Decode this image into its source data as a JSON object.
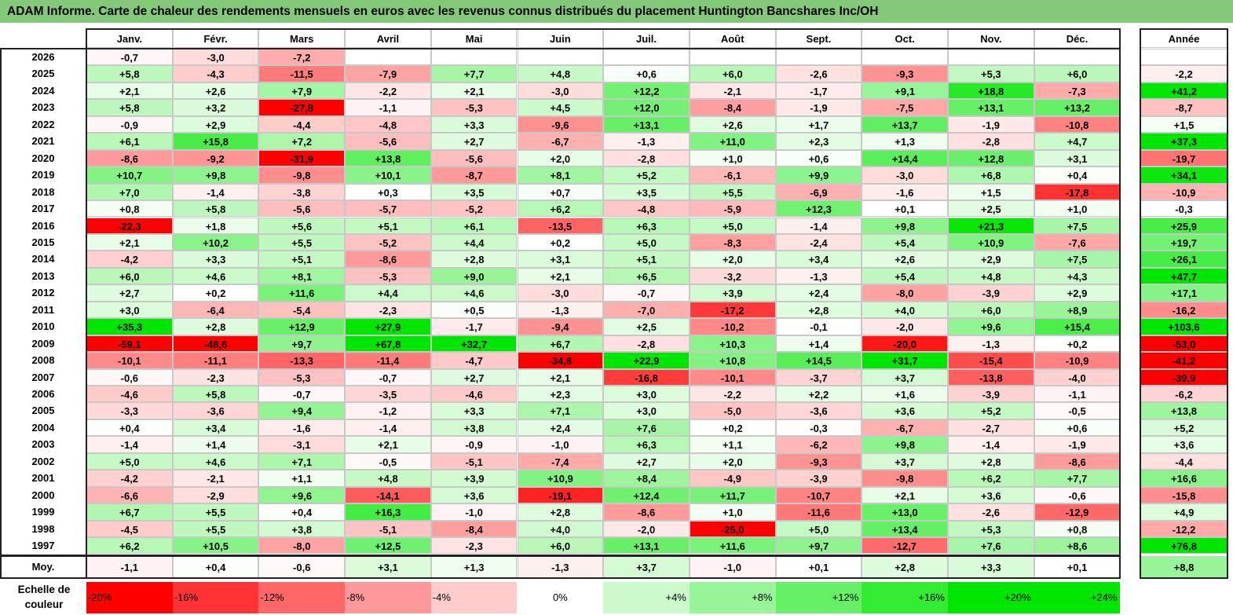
{
  "title": "ADAM Informe. Carte de chaleur des rendements mensuels en euros avec les revenus connus distribués du placement Huntington Bancshares Inc/OH",
  "chart_data": {
    "type": "heatmap",
    "title": "ADAM Informe. Carte de chaleur des rendements mensuels en euros avec les revenus connus distribués du placement Huntington Bancshares Inc/OH",
    "columns": [
      "Janv.",
      "Févr.",
      "Mars",
      "Avril",
      "Mai",
      "Juin",
      "Juil.",
      "Août",
      "Sept.",
      "Oct.",
      "Nov.",
      "Déc."
    ],
    "year_header": "Année",
    "rows": [
      {
        "year": "2026",
        "months": [
          "-0,7",
          "-3,0",
          "-7,2",
          "",
          "",
          "",
          "",
          "",
          "",
          "",
          "",
          ""
        ],
        "annual": ""
      },
      {
        "year": "2025",
        "months": [
          "+5,8",
          "-4,3",
          "-11,5",
          "-7,9",
          "+7,7",
          "+4,8",
          "+0,6",
          "+6,0",
          "-2,6",
          "-9,3",
          "+5,3",
          "+6,0"
        ],
        "annual": "-2,2"
      },
      {
        "year": "2024",
        "months": [
          "+2,1",
          "+2,6",
          "+7,9",
          "-2,2",
          "+2,1",
          "-3,0",
          "+12,2",
          "-2,1",
          "-1,7",
          "+9,1",
          "+18,8",
          "-7,3"
        ],
        "annual": "+41,2"
      },
      {
        "year": "2023",
        "months": [
          "+5,8",
          "+3,2",
          "-27,8",
          "-1,1",
          "-5,3",
          "+4,5",
          "+12,0",
          "-8,4",
          "-1,9",
          "-7,5",
          "+13,1",
          "+13,2"
        ],
        "annual": "-8,7"
      },
      {
        "year": "2022",
        "months": [
          "-0,9",
          "+2,9",
          "-4,4",
          "-4,8",
          "+3,3",
          "-9,6",
          "+13,1",
          "+2,6",
          "+1,7",
          "+13,7",
          "-1,9",
          "-10,8"
        ],
        "annual": "+1,5"
      },
      {
        "year": "2021",
        "months": [
          "+6,1",
          "+15,8",
          "+7,2",
          "-5,6",
          "+2,7",
          "-6,7",
          "-1,3",
          "+11,0",
          "+2,3",
          "+1,3",
          "-2,8",
          "+4,7"
        ],
        "annual": "+37,3"
      },
      {
        "year": "2020",
        "months": [
          "-8,6",
          "-9,2",
          "-31,9",
          "+13,8",
          "-5,6",
          "+2,0",
          "-2,8",
          "+1,0",
          "+0,6",
          "+14,4",
          "+12,8",
          "+3,1"
        ],
        "annual": "-19,7"
      },
      {
        "year": "2019",
        "months": [
          "+10,7",
          "+9,8",
          "-9,8",
          "+10,1",
          "-8,7",
          "+8,1",
          "+5,2",
          "-6,1",
          "+9,9",
          "-3,0",
          "+6,8",
          "+0,4"
        ],
        "annual": "+34,1"
      },
      {
        "year": "2018",
        "months": [
          "+7,0",
          "-1,4",
          "-3,8",
          "+0,3",
          "+3,5",
          "+0,7",
          "+3,5",
          "+5,5",
          "-6,9",
          "-1,6",
          "+1,5",
          "-17,8"
        ],
        "annual": "-10,9"
      },
      {
        "year": "2017",
        "months": [
          "+0,8",
          "+5,8",
          "-5,6",
          "-5,7",
          "-5,2",
          "+6,2",
          "-4,8",
          "-5,9",
          "+12,3",
          "+0,1",
          "+2,5",
          "+1,0"
        ],
        "annual": "-0,3"
      },
      {
        "year": "2016",
        "months": [
          "-22,3",
          "+1,8",
          "+5,6",
          "+5,1",
          "+6,1",
          "-13,5",
          "+6,3",
          "+5,0",
          "-1,4",
          "+9,8",
          "+21,3",
          "+7,5"
        ],
        "annual": "+25,9"
      },
      {
        "year": "2015",
        "months": [
          "+2,1",
          "+10,2",
          "+5,5",
          "-5,2",
          "+4,4",
          "+0,2",
          "+5,0",
          "-8,3",
          "-2,4",
          "+5,4",
          "+10,9",
          "-7,6"
        ],
        "annual": "+19,7"
      },
      {
        "year": "2014",
        "months": [
          "-4,2",
          "+3,3",
          "+5,1",
          "-8,6",
          "+2,8",
          "+3,1",
          "+5,1",
          "+2,0",
          "+3,4",
          "+2,6",
          "+2,9",
          "+7,5"
        ],
        "annual": "+26,1"
      },
      {
        "year": "2013",
        "months": [
          "+6,0",
          "+4,6",
          "+8,1",
          "-5,3",
          "+9,0",
          "+2,1",
          "+6,5",
          "-3,2",
          "-1,3",
          "+5,4",
          "+4,8",
          "+4,3"
        ],
        "annual": "+47,7"
      },
      {
        "year": "2012",
        "months": [
          "+2,7",
          "+0,2",
          "+11,6",
          "+4,4",
          "+4,6",
          "-3,0",
          "-0,7",
          "+3,9",
          "+2,4",
          "-8,0",
          "-3,9",
          "+2,9"
        ],
        "annual": "+17,1"
      },
      {
        "year": "2011",
        "months": [
          "+3,0",
          "-6,4",
          "-5,4",
          "-2,3",
          "+0,5",
          "-1,3",
          "-7,0",
          "-17,2",
          "+2,8",
          "+4,0",
          "+6,0",
          "+8,9"
        ],
        "annual": "-16,2"
      },
      {
        "year": "2010",
        "months": [
          "+35,3",
          "+2,8",
          "+12,9",
          "+27,9",
          "-1,7",
          "-9,4",
          "+2,5",
          "-10,2",
          "-0,1",
          "-2,0",
          "+9,6",
          "+15,4"
        ],
        "annual": "+103,6"
      },
      {
        "year": "2009",
        "months": [
          "-59,1",
          "-48,6",
          "+9,7",
          "+67,8",
          "+32,7",
          "+6,7",
          "-2,8",
          "+10,3",
          "+1,4",
          "-20,0",
          "-1,3",
          "+0,2"
        ],
        "annual": "-53,0"
      },
      {
        "year": "2008",
        "months": [
          "-10,1",
          "-11,1",
          "-13,3",
          "-11,4",
          "-4,7",
          "-34,8",
          "+22,9",
          "+10,8",
          "+14,5",
          "+31,7",
          "-15,4",
          "-10,9"
        ],
        "annual": "-41,2"
      },
      {
        "year": "2007",
        "months": [
          "-0,6",
          "-2,3",
          "-5,3",
          "-0,7",
          "+2,7",
          "+2,1",
          "-16,8",
          "-10,1",
          "-3,7",
          "+3,7",
          "-13,8",
          "-4,0"
        ],
        "annual": "-39,9"
      },
      {
        "year": "2006",
        "months": [
          "-4,6",
          "+5,8",
          "-0,7",
          "-3,5",
          "-4,6",
          "+2,3",
          "+3,0",
          "-2,2",
          "+2,2",
          "+1,6",
          "-3,9",
          "-1,1"
        ],
        "annual": "-6,2"
      },
      {
        "year": "2005",
        "months": [
          "-3,3",
          "-3,6",
          "+9,4",
          "-1,2",
          "+3,3",
          "+7,1",
          "+3,0",
          "-5,0",
          "-3,6",
          "+3,6",
          "+5,2",
          "-0,5"
        ],
        "annual": "+13,8"
      },
      {
        "year": "2004",
        "months": [
          "+0,4",
          "+3,4",
          "-1,6",
          "-1,4",
          "+3,8",
          "+2,4",
          "+7,6",
          "+0,2",
          "-0,3",
          "-6,7",
          "-2,7",
          "+0,6"
        ],
        "annual": "+5,2"
      },
      {
        "year": "2003",
        "months": [
          "-1,4",
          "+1,4",
          "-3,1",
          "+2,1",
          "-0,9",
          "-1,0",
          "+6,3",
          "+1,1",
          "-6,2",
          "+9,8",
          "-1,4",
          "-1,9"
        ],
        "annual": "+3,6"
      },
      {
        "year": "2002",
        "months": [
          "+5,0",
          "+4,6",
          "+7,1",
          "-0,5",
          "-5,1",
          "-7,4",
          "+2,7",
          "+2,0",
          "-9,3",
          "+3,7",
          "+2,8",
          "-8,6"
        ],
        "annual": "-4,4"
      },
      {
        "year": "2001",
        "months": [
          "-4,2",
          "-2,1",
          "+1,1",
          "+4,8",
          "+3,9",
          "+10,9",
          "+8,4",
          "-4,9",
          "-3,9",
          "-9,8",
          "+6,2",
          "+7,7"
        ],
        "annual": "+16,6"
      },
      {
        "year": "2000",
        "months": [
          "-6,6",
          "-2,9",
          "+9,6",
          "-14,1",
          "+3,6",
          "-19,1",
          "+12,4",
          "+11,7",
          "-10,7",
          "+2,1",
          "+3,6",
          "-0,6"
        ],
        "annual": "-15,8"
      },
      {
        "year": "1999",
        "months": [
          "+6,7",
          "+5,5",
          "+0,4",
          "+16,3",
          "-1,0",
          "+2,8",
          "-8,6",
          "+1,0",
          "-11,6",
          "+13,0",
          "-2,6",
          "-12,9"
        ],
        "annual": "+4,9"
      },
      {
        "year": "1998",
        "months": [
          "-4,5",
          "+5,5",
          "+3,8",
          "-5,1",
          "-8,4",
          "+4,0",
          "-2,0",
          "-25,0",
          "+5,0",
          "+13,4",
          "+5,3",
          "+0,8"
        ],
        "annual": "-12,2"
      },
      {
        "year": "1997",
        "months": [
          "+6,2",
          "+10,5",
          "-8,0",
          "+12,5",
          "-2,3",
          "+6,0",
          "+13,1",
          "+11,6",
          "+9,7",
          "-12,7",
          "+7,6",
          "+8,6"
        ],
        "annual": "+76,8"
      }
    ],
    "average": {
      "label": "Moy.",
      "months": [
        "-1,1",
        "+0,4",
        "-0,6",
        "+3,1",
        "+1,3",
        "-1,3",
        "+3,7",
        "-1,0",
        "+0,1",
        "+2,8",
        "+3,3",
        "+0,1"
      ],
      "annual": "+8,8"
    },
    "color_scale": {
      "label": "Echelle de couleur",
      "stops": [
        {
          "label": "-20%",
          "value": -20
        },
        {
          "label": "-16%",
          "value": -16
        },
        {
          "label": "-12%",
          "value": -12
        },
        {
          "label": "-8%",
          "value": -8
        },
        {
          "label": "-4%",
          "value": -4
        },
        {
          "label": "0%",
          "value": 0
        },
        {
          "label": "+4%",
          "value": 4
        },
        {
          "label": "+8%",
          "value": 8
        },
        {
          "label": "+12%",
          "value": 12
        },
        {
          "label": "+16%",
          "value": 16
        },
        {
          "label": "+20%",
          "value": 20
        },
        {
          "label": "+24%",
          "value": 24
        }
      ]
    },
    "colors": {
      "negative": "#ff0000",
      "neutral": "#ffffff",
      "positive": "#00e000",
      "header_bar": "#84c97a"
    }
  }
}
